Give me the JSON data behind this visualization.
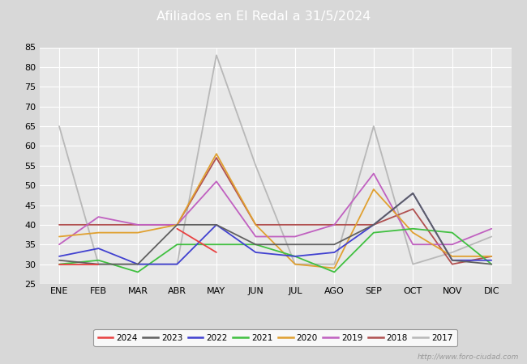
{
  "title": "Afiliados en El Redal a 31/5/2024",
  "title_bg_color": "#4472c4",
  "title_text_color": "#ffffff",
  "ylim": [
    25,
    85
  ],
  "yticks": [
    25,
    30,
    35,
    40,
    45,
    50,
    55,
    60,
    65,
    70,
    75,
    80,
    85
  ],
  "months": [
    "ENE",
    "FEB",
    "MAR",
    "ABR",
    "MAY",
    "JUN",
    "JUL",
    "AGO",
    "SEP",
    "OCT",
    "NOV",
    "DIC"
  ],
  "watermark": "http://www.foro-ciudad.com",
  "background_color": "#d8d8d8",
  "plot_bg_color": "#e8e8e8",
  "grid_color": "#ffffff",
  "series": {
    "2024": {
      "color": "#e84040",
      "data": [
        30,
        30,
        null,
        39,
        33,
        null,
        null,
        null,
        null,
        null,
        null,
        null
      ]
    },
    "2023": {
      "color": "#606060",
      "data": [
        31,
        30,
        30,
        40,
        40,
        35,
        35,
        35,
        40,
        48,
        31,
        30
      ]
    },
    "2022": {
      "color": "#4040d0",
      "data": [
        32,
        34,
        30,
        30,
        40,
        33,
        32,
        33,
        40,
        48,
        31,
        31
      ]
    },
    "2021": {
      "color": "#40c040",
      "data": [
        30,
        31,
        28,
        35,
        35,
        35,
        32,
        28,
        38,
        39,
        38,
        30
      ]
    },
    "2020": {
      "color": "#e0a030",
      "data": [
        37,
        38,
        38,
        40,
        58,
        40,
        30,
        29,
        49,
        38,
        32,
        32
      ]
    },
    "2019": {
      "color": "#c060c0",
      "data": [
        35,
        42,
        40,
        40,
        51,
        37,
        37,
        40,
        53,
        35,
        35,
        39
      ]
    },
    "2018": {
      "color": "#b05050",
      "data": [
        40,
        40,
        40,
        40,
        57,
        40,
        40,
        40,
        40,
        44,
        30,
        32
      ]
    },
    "2017": {
      "color": "#b8b8b8",
      "data": [
        65,
        30,
        30,
        30,
        83,
        55,
        30,
        30,
        65,
        30,
        33,
        37
      ]
    }
  },
  "series_order": [
    "2017",
    "2018",
    "2019",
    "2020",
    "2021",
    "2022",
    "2023",
    "2024"
  ],
  "legend_order": [
    "2024",
    "2023",
    "2022",
    "2021",
    "2020",
    "2019",
    "2018",
    "2017"
  ]
}
